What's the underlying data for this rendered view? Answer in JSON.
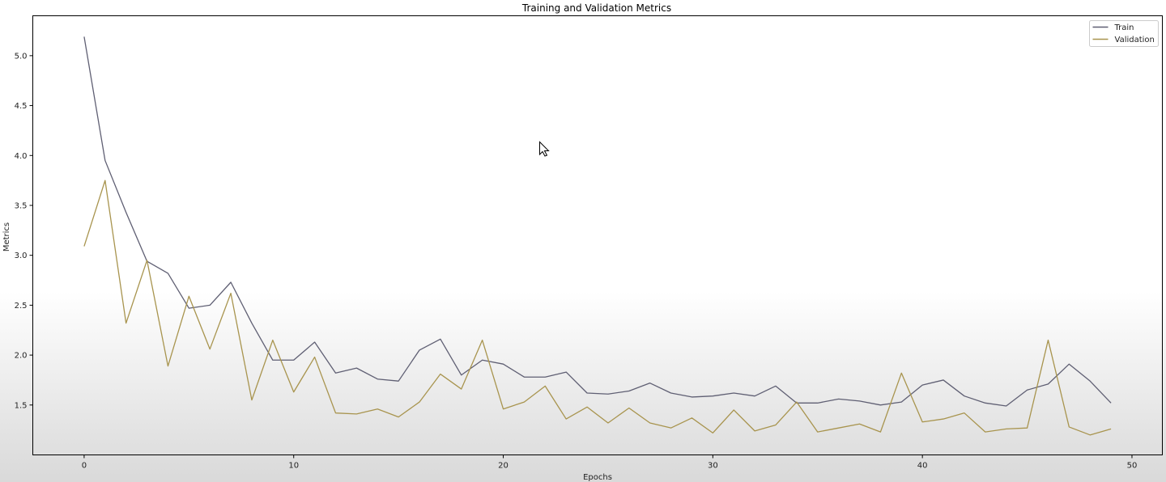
{
  "chart_data": {
    "type": "line",
    "title": "Training and Validation Metrics",
    "xlabel": "Epochs",
    "ylabel": "Metrics",
    "xlim": [
      -2.45,
      51.45
    ],
    "ylim": [
      1.0,
      5.4
    ],
    "xticks": [
      0,
      10,
      20,
      30,
      40,
      50
    ],
    "yticks": [
      1.5,
      2.0,
      2.5,
      3.0,
      3.5,
      4.0,
      4.5,
      5.0
    ],
    "xtick_labels": [
      "0",
      "10",
      "20",
      "30",
      "40",
      "50"
    ],
    "ytick_labels": [
      "1.5",
      "2.0",
      "2.5",
      "3.0",
      "3.5",
      "4.0",
      "4.5",
      "5.0"
    ],
    "grid": false,
    "legend_position": "top-right",
    "x": [
      0,
      1,
      2,
      3,
      4,
      5,
      6,
      7,
      8,
      9,
      10,
      11,
      12,
      13,
      14,
      15,
      16,
      17,
      18,
      19,
      20,
      21,
      22,
      23,
      24,
      25,
      26,
      27,
      28,
      29,
      30,
      31,
      32,
      33,
      34,
      35,
      36,
      37,
      38,
      39,
      40,
      41,
      42,
      43,
      44,
      45,
      46,
      47,
      48,
      49
    ],
    "series": [
      {
        "name": "Train",
        "color": "#5f5f73",
        "values": [
          5.19,
          3.95,
          3.43,
          2.94,
          2.82,
          2.47,
          2.5,
          2.73,
          2.32,
          1.95,
          1.95,
          2.13,
          1.82,
          1.87,
          1.76,
          1.74,
          2.05,
          2.16,
          1.8,
          1.95,
          1.91,
          1.78,
          1.78,
          1.83,
          1.62,
          1.61,
          1.64,
          1.72,
          1.62,
          1.58,
          1.59,
          1.62,
          1.59,
          1.69,
          1.52,
          1.52,
          1.56,
          1.54,
          1.5,
          1.53,
          1.7,
          1.75,
          1.59,
          1.52,
          1.49,
          1.65,
          1.71,
          1.91,
          1.74,
          1.52
        ]
      },
      {
        "name": "Validation",
        "color": "#a8944e",
        "values": [
          3.09,
          3.75,
          2.32,
          2.95,
          1.89,
          2.59,
          2.06,
          2.62,
          1.55,
          2.15,
          1.63,
          1.98,
          1.42,
          1.41,
          1.46,
          1.38,
          1.53,
          1.81,
          1.66,
          2.15,
          1.46,
          1.53,
          1.69,
          1.36,
          1.48,
          1.32,
          1.47,
          1.32,
          1.27,
          1.37,
          1.22,
          1.45,
          1.24,
          1.3,
          1.53,
          1.23,
          1.27,
          1.31,
          1.23,
          1.82,
          1.33,
          1.36,
          1.42,
          1.23,
          1.26,
          1.27,
          2.15,
          1.28,
          1.2,
          1.26
        ]
      }
    ]
  }
}
